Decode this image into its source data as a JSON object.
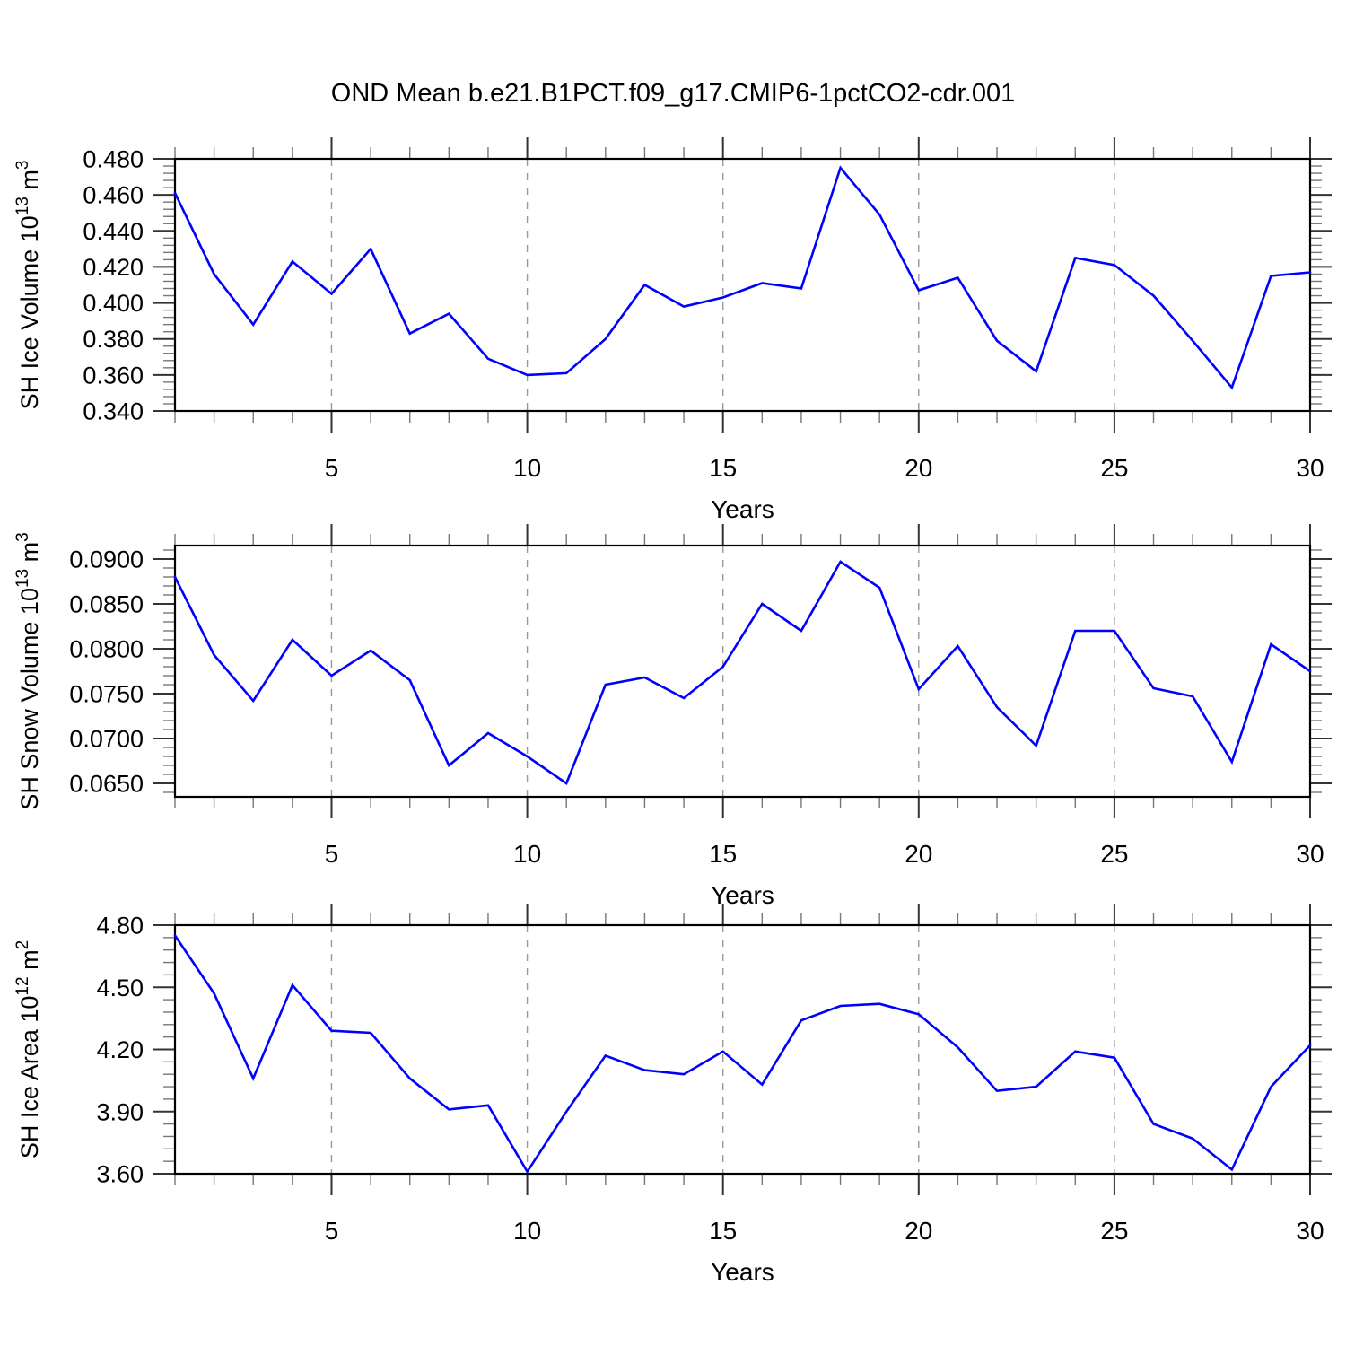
{
  "title": "OND Mean b.e21.B1PCT.f09_g17.CMIP6-1pctCO2-cdr.001",
  "line_color": "#0000ff",
  "grid_color": "#999999",
  "axis_color": "#000000",
  "chart_data": [
    {
      "type": "line",
      "name": "sh-ice-volume",
      "title": "",
      "ylabel": "SH Ice Volume 10^13 m^3",
      "ylabel_parts": [
        {
          "text": "SH Ice Volume 10"
        },
        {
          "sup": "13"
        },
        {
          "text": " m"
        },
        {
          "sup": "3"
        }
      ],
      "xlabel": "Years",
      "xlim": [
        1,
        30
      ],
      "ylim": [
        0.34,
        0.48
      ],
      "x": [
        1,
        2,
        3,
        4,
        5,
        6,
        7,
        8,
        9,
        10,
        11,
        12,
        13,
        14,
        15,
        16,
        17,
        18,
        19,
        20,
        21,
        22,
        23,
        24,
        25,
        26,
        27,
        28,
        29,
        30
      ],
      "values": [
        0.461,
        0.416,
        0.388,
        0.423,
        0.405,
        0.43,
        0.383,
        0.394,
        0.369,
        0.36,
        0.361,
        0.38,
        0.41,
        0.398,
        0.403,
        0.411,
        0.408,
        0.475,
        0.449,
        0.407,
        0.414,
        0.379,
        0.362,
        0.425,
        0.421,
        0.404,
        0.379,
        0.353,
        0.415,
        0.417
      ],
      "yticks": [
        0.34,
        0.36,
        0.38,
        0.4,
        0.42,
        0.44,
        0.46,
        0.48
      ],
      "ytick_labels": [
        "0.340",
        "0.360",
        "0.380",
        "0.400",
        "0.420",
        "0.440",
        "0.460",
        "0.480"
      ],
      "yminor_step": 0.004,
      "xticks": [
        5,
        10,
        15,
        20,
        25,
        30
      ],
      "xtick_labels": [
        "5",
        "10",
        "15",
        "20",
        "25",
        "30"
      ],
      "xminor_step": 1,
      "grid_years": [
        5,
        10,
        15,
        20,
        25
      ],
      "grid_style": "dashed"
    },
    {
      "type": "line",
      "name": "sh-snow-volume",
      "title": "",
      "ylabel": "SH Snow Volume 10^13 m^3",
      "ylabel_parts": [
        {
          "text": "SH Snow Volume 10"
        },
        {
          "sup": "13"
        },
        {
          "text": " m"
        },
        {
          "sup": "3"
        }
      ],
      "xlabel": "Years",
      "xlim": [
        1,
        30
      ],
      "ylim": [
        0.0635,
        0.0915
      ],
      "x": [
        1,
        2,
        3,
        4,
        5,
        6,
        7,
        8,
        9,
        10,
        11,
        12,
        13,
        14,
        15,
        16,
        17,
        18,
        19,
        20,
        21,
        22,
        23,
        24,
        25,
        26,
        27,
        28,
        29,
        30
      ],
      "values": [
        0.088,
        0.0793,
        0.0742,
        0.081,
        0.077,
        0.0798,
        0.0765,
        0.067,
        0.0706,
        0.068,
        0.065,
        0.076,
        0.0768,
        0.0745,
        0.078,
        0.085,
        0.082,
        0.0897,
        0.0868,
        0.0755,
        0.0803,
        0.0735,
        0.0692,
        0.082,
        0.082,
        0.0756,
        0.0747,
        0.0674,
        0.0805,
        0.0775
      ],
      "yticks": [
        0.065,
        0.07,
        0.075,
        0.08,
        0.085,
        0.09
      ],
      "ytick_labels": [
        "0.0650",
        "0.0700",
        "0.0750",
        "0.0800",
        "0.0850",
        "0.0900"
      ],
      "yminor_step": 0.001,
      "xticks": [
        5,
        10,
        15,
        20,
        25,
        30
      ],
      "xtick_labels": [
        "5",
        "10",
        "15",
        "20",
        "25",
        "30"
      ],
      "xminor_step": 1,
      "grid_years": [
        5,
        10,
        15,
        20,
        25
      ],
      "grid_style": "dashed"
    },
    {
      "type": "line",
      "name": "sh-ice-area",
      "title": "",
      "ylabel": "SH Ice Area 10^12 m^2",
      "ylabel_parts": [
        {
          "text": "SH Ice Area 10"
        },
        {
          "sup": "12"
        },
        {
          "text": " m"
        },
        {
          "sup": "2"
        }
      ],
      "xlabel": "Years",
      "xlim": [
        1,
        30
      ],
      "ylim": [
        3.6,
        4.8
      ],
      "x": [
        1,
        2,
        3,
        4,
        5,
        6,
        7,
        8,
        9,
        10,
        11,
        12,
        13,
        14,
        15,
        16,
        17,
        18,
        19,
        20,
        21,
        22,
        23,
        24,
        25,
        26,
        27,
        28,
        29,
        30
      ],
      "values": [
        4.75,
        4.47,
        4.06,
        4.51,
        4.29,
        4.28,
        4.06,
        3.91,
        3.93,
        3.61,
        3.9,
        4.17,
        4.1,
        4.08,
        4.19,
        4.03,
        4.34,
        4.41,
        4.42,
        4.37,
        4.21,
        4.0,
        4.02,
        4.19,
        4.16,
        3.84,
        3.77,
        3.62,
        4.02,
        4.22
      ],
      "yticks": [
        3.6,
        3.9,
        4.2,
        4.5,
        4.8
      ],
      "ytick_labels": [
        "3.60",
        "3.90",
        "4.20",
        "4.50",
        "4.80"
      ],
      "yminor_step": 0.06,
      "xticks": [
        5,
        10,
        15,
        20,
        25,
        30
      ],
      "xtick_labels": [
        "5",
        "10",
        "15",
        "20",
        "25",
        "30"
      ],
      "xminor_step": 1,
      "grid_years": [
        5,
        10,
        15,
        20,
        25
      ],
      "grid_style": "dashed"
    }
  ]
}
